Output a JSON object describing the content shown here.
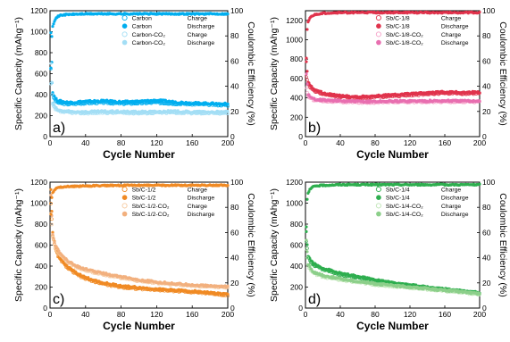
{
  "chart_data": [
    {
      "panel_label": "a)",
      "type": "scatter",
      "xlabel": "Cycle Number",
      "ylabel_left": "Specific Capacity (mAhg⁻¹)",
      "ylabel_right": "Coulombic Efficiency (%)",
      "xlim": [
        0,
        200
      ],
      "ylim_left": [
        0,
        1200
      ],
      "ylim_right": [
        0,
        100
      ],
      "x_ticks": [
        "0",
        "40",
        "80",
        "120",
        "160",
        "200"
      ],
      "y_ticks_left": [
        "0",
        "200",
        "400",
        "600",
        "800",
        "1000",
        "1200"
      ],
      "y_ticks_right": [
        "0",
        "20",
        "40",
        "60",
        "80",
        "100"
      ],
      "legend_position": "top-right",
      "series": [
        {
          "name": "Carbon",
          "kind": "Charge",
          "axis": "left",
          "marker": "open",
          "color": "#00aeef",
          "x": [
            1,
            3,
            6,
            10,
            20,
            40,
            60,
            80,
            100,
            120,
            140,
            160,
            180,
            200
          ],
          "y": [
            650,
            390,
            340,
            320,
            310,
            320,
            325,
            315,
            318,
            325,
            315,
            310,
            305,
            300
          ]
        },
        {
          "name": "Carbon",
          "kind": "Discharge",
          "axis": "left",
          "marker": "filled",
          "color": "#00aeef",
          "x": [
            1,
            3,
            6,
            10,
            20,
            40,
            60,
            80,
            100,
            120,
            140,
            160,
            180,
            200
          ],
          "y": [
            1000,
            420,
            360,
            340,
            325,
            335,
            340,
            330,
            335,
            345,
            330,
            320,
            315,
            310
          ]
        },
        {
          "name": "Carbon-CO₂",
          "kind": "Charge",
          "axis": "left",
          "marker": "open",
          "color": "#a3def5",
          "x": [
            1,
            3,
            6,
            10,
            20,
            40,
            60,
            80,
            100,
            120,
            140,
            160,
            180,
            200
          ],
          "y": [
            500,
            300,
            260,
            240,
            230,
            225,
            230,
            228,
            225,
            228,
            230,
            225,
            225,
            225
          ]
        },
        {
          "name": "Carbon-CO₂",
          "kind": "Discharge",
          "axis": "left",
          "marker": "filled",
          "color": "#a3def5",
          "x": [
            1,
            3,
            6,
            10,
            20,
            40,
            60,
            80,
            100,
            120,
            140,
            160,
            180,
            200
          ],
          "y": [
            700,
            320,
            275,
            250,
            240,
            235,
            240,
            238,
            235,
            238,
            240,
            235,
            235,
            235
          ]
        },
        {
          "name": "Coulombic efficiency",
          "kind": "CE",
          "axis": "right",
          "marker": "filled",
          "color": "#00aeef",
          "x": [
            1,
            2,
            3,
            5,
            8,
            12,
            20,
            40,
            80,
            120,
            160,
            200
          ],
          "y": [
            55,
            80,
            88,
            92,
            95,
            96.5,
            97,
            97.5,
            97.5,
            97.5,
            97.5,
            97.5
          ]
        }
      ]
    },
    {
      "panel_label": "b)",
      "type": "scatter",
      "xlabel": "Cycle Number",
      "ylabel_left": "Specific Capacity (mAhg⁻¹)",
      "ylabel_right": "Coulombic Efficiency (%)",
      "xlim": [
        0,
        200
      ],
      "ylim_left": [
        0,
        1300
      ],
      "ylim_right": [
        0,
        100
      ],
      "x_ticks": [
        "0",
        "40",
        "80",
        "120",
        "160",
        "200"
      ],
      "y_ticks_left": [
        "0",
        "200",
        "400",
        "600",
        "800",
        "1000",
        "1200"
      ],
      "y_ticks_right": [
        "0",
        "20",
        "40",
        "60",
        "80",
        "100"
      ],
      "legend_position": "top-right",
      "series": [
        {
          "name": "Sb/C-1/8",
          "kind": "Charge",
          "axis": "left",
          "marker": "open",
          "color": "#e0334c",
          "x": [
            1,
            3,
            6,
            10,
            20,
            40,
            60,
            80,
            100,
            120,
            140,
            160,
            180,
            200
          ],
          "y": [
            620,
            540,
            500,
            470,
            440,
            410,
            400,
            410,
            420,
            430,
            440,
            450,
            445,
            450
          ]
        },
        {
          "name": "Sb/C-1/8",
          "kind": "Discharge",
          "axis": "left",
          "marker": "filled",
          "color": "#e0334c",
          "x": [
            1,
            3,
            6,
            10,
            20,
            40,
            60,
            80,
            100,
            120,
            140,
            160,
            180,
            200
          ],
          "y": [
            800,
            570,
            520,
            490,
            450,
            420,
            410,
            420,
            430,
            440,
            450,
            460,
            455,
            460
          ]
        },
        {
          "name": "Sb/C-1/8-CO₂",
          "kind": "Charge",
          "axis": "left",
          "marker": "open",
          "color": "#f6a3c9",
          "x": [
            1,
            3,
            6,
            10,
            20,
            40,
            60,
            80,
            100,
            120,
            140,
            160,
            180,
            200
          ],
          "y": [
            500,
            420,
            390,
            380,
            370,
            360,
            355,
            355,
            358,
            360,
            360,
            362,
            360,
            360
          ]
        },
        {
          "name": "Sb/C-1/8-CO₂",
          "kind": "Discharge",
          "axis": "left",
          "marker": "filled",
          "color": "#e86fb0",
          "x": [
            1,
            3,
            6,
            10,
            20,
            40,
            60,
            80,
            100,
            120,
            140,
            160,
            180,
            200
          ],
          "y": [
            650,
            440,
            400,
            390,
            378,
            368,
            362,
            362,
            365,
            368,
            368,
            370,
            368,
            368
          ]
        },
        {
          "name": "Coulombic efficiency",
          "kind": "CE",
          "axis": "right",
          "marker": "filled",
          "color": "#e0334c",
          "x": [
            1,
            2,
            3,
            5,
            8,
            12,
            20,
            40,
            80,
            120,
            160,
            200
          ],
          "y": [
            60,
            85,
            91,
            94,
            96,
            97,
            98,
            98.5,
            98.5,
            98.5,
            98.5,
            98.5
          ]
        }
      ]
    },
    {
      "panel_label": "c)",
      "type": "scatter",
      "xlabel": "Cycle Number",
      "ylabel_left": "Specific Capacity (mAhg⁻¹)",
      "ylabel_right": "Coulombic Efficiency (%)",
      "xlim": [
        0,
        200
      ],
      "ylim_left": [
        0,
        1200
      ],
      "ylim_right": [
        0,
        100
      ],
      "x_ticks": [
        "0",
        "40",
        "80",
        "120",
        "160",
        "200"
      ],
      "y_ticks_left": [
        "0",
        "200",
        "400",
        "600",
        "800",
        "1000",
        "1200"
      ],
      "y_ticks_right": [
        "0",
        "20",
        "40",
        "60",
        "80",
        "100"
      ],
      "legend_position": "top-right",
      "series": [
        {
          "name": "Sb/C-1/2",
          "kind": "Charge",
          "axis": "left",
          "marker": "open",
          "color": "#f08a24",
          "x": [
            1,
            3,
            6,
            10,
            20,
            30,
            40,
            60,
            80,
            100,
            120,
            140,
            160,
            180,
            200
          ],
          "y": [
            1000,
            700,
            560,
            480,
            380,
            320,
            280,
            230,
            200,
            185,
            175,
            165,
            155,
            140,
            125
          ]
        },
        {
          "name": "Sb/C-1/2",
          "kind": "Discharge",
          "axis": "left",
          "marker": "filled",
          "color": "#f08a24",
          "x": [
            1,
            3,
            6,
            10,
            20,
            30,
            40,
            60,
            80,
            100,
            120,
            140,
            160,
            180,
            200
          ],
          "y": [
            1120,
            720,
            580,
            490,
            390,
            330,
            290,
            240,
            210,
            195,
            180,
            170,
            160,
            145,
            130
          ]
        },
        {
          "name": "Sb/C-1/2-CO₂",
          "kind": "Charge",
          "axis": "left",
          "marker": "open",
          "color": "#f6caa0",
          "x": [
            1,
            3,
            6,
            10,
            20,
            30,
            40,
            60,
            80,
            100,
            120,
            140,
            160,
            180,
            200
          ],
          "y": [
            900,
            680,
            580,
            520,
            440,
            390,
            360,
            320,
            290,
            260,
            240,
            225,
            215,
            205,
            200
          ]
        },
        {
          "name": "Sb/C-1/2-CO₂",
          "kind": "Discharge",
          "axis": "left",
          "marker": "filled",
          "color": "#f2b07e",
          "x": [
            1,
            3,
            6,
            10,
            20,
            30,
            40,
            60,
            80,
            100,
            120,
            140,
            160,
            180,
            200
          ],
          "y": [
            1080,
            700,
            600,
            535,
            450,
            400,
            370,
            330,
            298,
            268,
            248,
            232,
            220,
            210,
            205
          ]
        },
        {
          "name": "Coulombic efficiency",
          "kind": "CE",
          "axis": "right",
          "marker": "filled",
          "color": "#f08a24",
          "x": [
            1,
            2,
            3,
            5,
            8,
            12,
            20,
            40,
            80,
            120,
            160,
            200
          ],
          "y": [
            75,
            88,
            92,
            94,
            95.5,
            96,
            96.5,
            97,
            97.5,
            97.5,
            97.5,
            97.5
          ]
        }
      ]
    },
    {
      "panel_label": "d)",
      "type": "scatter",
      "xlabel": "Cycle Number",
      "ylabel_left": "Specific Capacity (mAhg⁻¹)",
      "ylabel_right": "Coulombic Efficiency (%)",
      "xlim": [
        0,
        200
      ],
      "ylim_left": [
        0,
        1200
      ],
      "ylim_right": [
        0,
        100
      ],
      "x_ticks": [
        "0",
        "40",
        "80",
        "120",
        "160",
        "200"
      ],
      "y_ticks_left": [
        "0",
        "200",
        "400",
        "600",
        "800",
        "1000",
        "1200"
      ],
      "y_ticks_right": [
        "0",
        "20",
        "40",
        "60",
        "80",
        "100"
      ],
      "legend_position": "top-right",
      "series": [
        {
          "name": "Sb/C-1/4",
          "kind": "Charge",
          "axis": "left",
          "marker": "open",
          "color": "#2eae4f",
          "x": [
            1,
            3,
            6,
            10,
            20,
            40,
            60,
            80,
            100,
            120,
            140,
            160,
            180,
            200
          ],
          "y": [
            640,
            480,
            440,
            410,
            370,
            320,
            290,
            260,
            235,
            215,
            195,
            175,
            160,
            140
          ]
        },
        {
          "name": "Sb/C-1/4",
          "kind": "Discharge",
          "axis": "left",
          "marker": "filled",
          "color": "#2eae4f",
          "x": [
            1,
            3,
            6,
            10,
            20,
            40,
            60,
            80,
            100,
            120,
            140,
            160,
            180,
            200
          ],
          "y": [
            720,
            500,
            455,
            420,
            380,
            330,
            300,
            270,
            240,
            220,
            200,
            180,
            165,
            145
          ]
        },
        {
          "name": "Sb/C-1/4-CO₂",
          "kind": "Charge",
          "axis": "left",
          "marker": "open",
          "color": "#bfe5b6",
          "x": [
            1,
            3,
            6,
            10,
            20,
            40,
            60,
            80,
            100,
            120,
            140,
            160,
            180,
            200
          ],
          "y": [
            560,
            400,
            360,
            330,
            300,
            270,
            245,
            225,
            210,
            195,
            180,
            165,
            150,
            130
          ]
        },
        {
          "name": "Sb/C-1/4-CO₂",
          "kind": "Discharge",
          "axis": "left",
          "marker": "filled",
          "color": "#8ccf8a",
          "x": [
            1,
            3,
            6,
            10,
            20,
            40,
            60,
            80,
            100,
            120,
            140,
            160,
            180,
            200
          ],
          "y": [
            650,
            420,
            375,
            340,
            310,
            280,
            255,
            232,
            215,
            200,
            185,
            170,
            155,
            135
          ]
        },
        {
          "name": "Coulombic efficiency",
          "kind": "CE",
          "axis": "right",
          "marker": "filled",
          "color": "#2eae4f",
          "x": [
            1,
            2,
            3,
            5,
            8,
            12,
            20,
            40,
            80,
            120,
            160,
            200
          ],
          "y": [
            65,
            86,
            91,
            94,
            96,
            97,
            97.5,
            98,
            98,
            98,
            98,
            98
          ]
        }
      ]
    }
  ]
}
